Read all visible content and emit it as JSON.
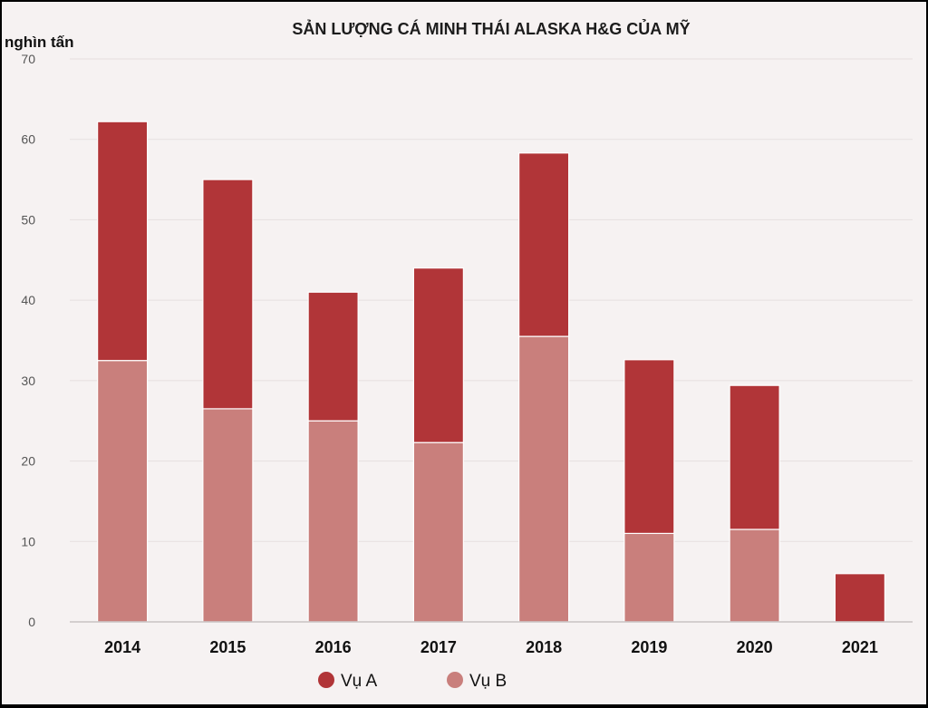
{
  "chart_data": {
    "type": "bar",
    "stacked": true,
    "title": "SẢN LƯỢNG CÁ MINH THÁI ALASKA H&G CỦA MỸ",
    "ylabel": "nghìn tấn",
    "xlabel": "",
    "ylim": [
      0,
      70
    ],
    "yticks": [
      0,
      10,
      20,
      30,
      40,
      50,
      60,
      70
    ],
    "grid": true,
    "legend_position": "bottom-left",
    "categories": [
      "2014",
      "2015",
      "2016",
      "2017",
      "2018",
      "2019",
      "2020",
      "2021"
    ],
    "series": [
      {
        "name": "Vụ B",
        "color": "#c97f7c",
        "values": [
          32.5,
          26.5,
          25,
          22.3,
          35.5,
          11,
          11.5,
          0
        ]
      },
      {
        "name": "Vụ A",
        "color": "#b13538",
        "values": [
          29.7,
          28.5,
          16,
          21.7,
          22.8,
          21.6,
          17.9,
          6
        ]
      }
    ],
    "legend": [
      {
        "label": "Vụ A",
        "color": "#b13538"
      },
      {
        "label": "Vụ B",
        "color": "#c97f7c"
      }
    ]
  }
}
